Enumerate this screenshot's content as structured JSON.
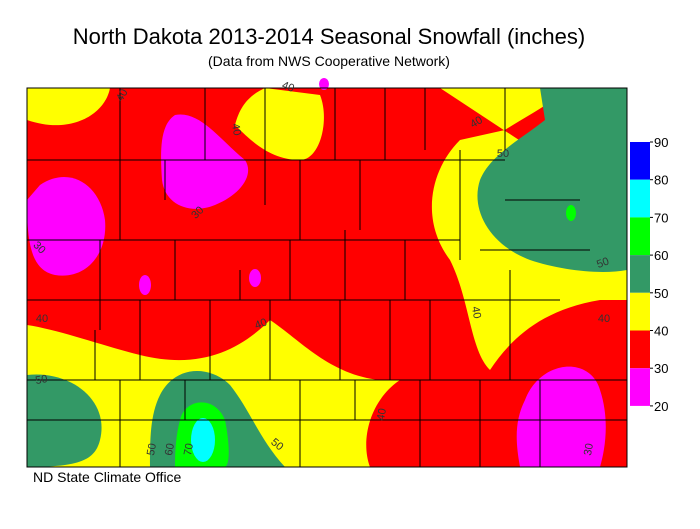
{
  "header": {
    "title": "North Dakota 2013-2014 Seasonal Snowfall (inches)",
    "subtitle": "(Data from NWS Cooperative Network)"
  },
  "legend": {
    "ticks": [
      90,
      80,
      70,
      60,
      50,
      40,
      30,
      20
    ],
    "colors": [
      "#0000ff",
      "#00ffff",
      "#00ff00",
      "#339966",
      "#ffff00",
      "#ff0000",
      "#ff00ff"
    ]
  },
  "contour_labels": [
    "40",
    "40",
    "40",
    "40",
    "50",
    "30",
    "30",
    "50",
    "40",
    "40",
    "40",
    "40",
    "50",
    "40",
    "50",
    "60",
    "70",
    "50",
    "30"
  ],
  "footer": "ND State Climate Office"
}
